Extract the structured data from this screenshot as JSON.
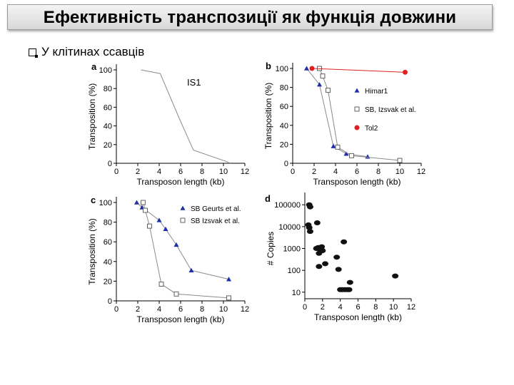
{
  "slide": {
    "title": "Ефективність транспозиції як функція довжини",
    "bullet": "У клітинах ссавців"
  },
  "colors": {
    "blue": "#1f2fa8",
    "red": "#e02020",
    "gray": "#808080"
  },
  "chart_data": [
    {
      "panel": "a",
      "type": "line",
      "xlabel": "Transposon length (kb)",
      "ylabel": "Transposition (%)",
      "xlim": [
        0,
        12
      ],
      "ylim": [
        0,
        100
      ],
      "xticks": [
        0,
        2,
        4,
        6,
        8,
        10,
        12
      ],
      "yticks": [
        0,
        20,
        40,
        60,
        80,
        100
      ],
      "annotation": "IS1",
      "series": [
        {
          "name": "",
          "marker": "none",
          "color": "#808080",
          "x": [
            2.3,
            4.1,
            5.8,
            7.2,
            10.5
          ],
          "y": [
            100,
            96,
            50,
            14,
            1
          ]
        }
      ]
    },
    {
      "panel": "b",
      "type": "line",
      "xlabel": "Transposon length (kb)",
      "ylabel": "Transposition (%)",
      "xlim": [
        0,
        12
      ],
      "ylim": [
        0,
        100
      ],
      "xticks": [
        0,
        2,
        4,
        6,
        8,
        10,
        12
      ],
      "yticks": [
        0,
        20,
        40,
        60,
        80,
        100
      ],
      "legend_position": "right",
      "series": [
        {
          "name": "Himar1",
          "marker": "triangle",
          "color": "#1f2fa8",
          "x": [
            1.3,
            2.5,
            3.8,
            5.0,
            7.0
          ],
          "y": [
            100,
            83,
            18,
            10,
            7
          ]
        },
        {
          "name": "SB, Izsvak et al.",
          "marker": "square",
          "color": "#606060",
          "x": [
            2.5,
            2.8,
            3.3,
            4.2,
            5.5,
            10.0
          ],
          "y": [
            100,
            92,
            77,
            17,
            8,
            3
          ]
        },
        {
          "name": "Tol2",
          "marker": "circle",
          "color": "#e02020",
          "x": [
            1.8,
            10.5
          ],
          "y": [
            100,
            96
          ]
        }
      ]
    },
    {
      "panel": "c",
      "type": "line",
      "xlabel": "Transposon length (kb)",
      "ylabel": "Transposition (%)",
      "xlim": [
        0,
        12
      ],
      "ylim": [
        0,
        100
      ],
      "xticks": [
        0,
        2,
        4,
        6,
        8,
        10,
        12
      ],
      "yticks": [
        0,
        20,
        40,
        60,
        80,
        100
      ],
      "legend_position": "top-right",
      "series": [
        {
          "name": "SB Geurts et al.",
          "marker": "triangle",
          "color": "#1f2fa8",
          "x": [
            1.9,
            2.4,
            4.0,
            4.6,
            5.6,
            7.0,
            10.5
          ],
          "y": [
            100,
            95,
            82,
            73,
            57,
            31,
            22
          ]
        },
        {
          "name": "SB Izsvak et al.",
          "marker": "square",
          "color": "#606060",
          "x": [
            2.5,
            2.7,
            3.1,
            4.2,
            5.6,
            10.5
          ],
          "y": [
            100,
            92,
            76,
            17,
            7,
            3
          ]
        }
      ]
    },
    {
      "panel": "d",
      "type": "scatter",
      "xlabel": "Transposon length (kb)",
      "ylabel": "# Copies",
      "xlim": [
        0,
        12
      ],
      "ylim": [
        5,
        200000
      ],
      "log_y": true,
      "xticks": [
        0,
        2,
        4,
        6,
        8,
        10,
        12
      ],
      "ytick_labels": [
        "10",
        "100",
        "1000",
        "10000",
        "100000"
      ],
      "yticks": [
        10,
        100,
        1000,
        10000,
        100000
      ],
      "series": [
        {
          "name": "",
          "marker": "circle",
          "color": "#111111",
          "x": [
            0.5,
            0.6,
            0.4,
            0.5,
            0.6,
            1.4,
            1.3,
            1.5,
            1.7,
            1.9,
            1.6,
            2.0,
            1.6,
            2.3,
            3.6,
            3.8,
            4.4,
            4.8,
            4.2,
            4.0,
            4.5,
            5.0,
            5.1,
            10.2
          ],
          "y": [
            100000,
            80000,
            12000,
            9000,
            6000,
            15000,
            1000,
            1100,
            900,
            1200,
            600,
            800,
            150,
            200,
            400,
            110,
            2000,
            13,
            13,
            13,
            13,
            13,
            28,
            55
          ]
        }
      ]
    }
  ]
}
